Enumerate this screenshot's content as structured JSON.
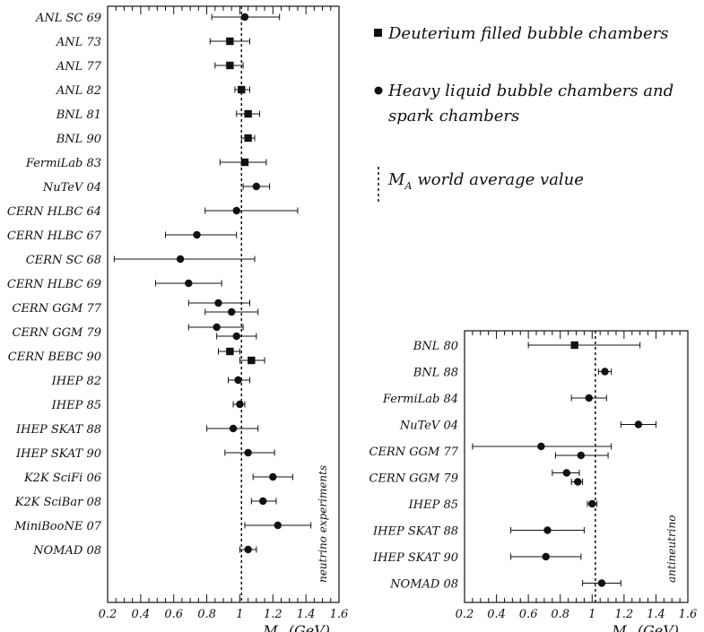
{
  "legend": {
    "deuterium": "Deuterium filled bubble chambers",
    "heavy_line1": "Heavy liquid bubble chambers and",
    "heavy_line2": "spark chambers",
    "average": "world average value",
    "average_symbol": "M",
    "average_sub": "A"
  },
  "chart_data": [
    {
      "type": "scatter",
      "xlabel": "M",
      "xlabel_sub": "A",
      "xlabel_unit": "(GeV)",
      "side_label": "neutrino experiments",
      "xlim": [
        0.2,
        1.6
      ],
      "xticks": [
        "0.2",
        "0.4",
        "0.6",
        "0.8",
        "1",
        "1.2",
        "1.4",
        "1.6"
      ],
      "world_average": 1.01,
      "experiments": [
        {
          "label": "ANL SC 69",
          "points": [
            {
              "value": 1.03,
              "low": 0.83,
              "high": 1.24,
              "marker": "circle"
            }
          ]
        },
        {
          "label": "ANL 73",
          "points": [
            {
              "value": 0.94,
              "low": 0.82,
              "high": 1.06,
              "marker": "square"
            }
          ]
        },
        {
          "label": "ANL 77",
          "points": [
            {
              "value": 0.94,
              "low": 0.85,
              "high": 1.02,
              "marker": "square"
            }
          ]
        },
        {
          "label": "ANL 82",
          "points": [
            {
              "value": 1.01,
              "low": 0.97,
              "high": 1.06,
              "marker": "square"
            }
          ]
        },
        {
          "label": "BNL 81",
          "points": [
            {
              "value": 1.05,
              "low": 0.98,
              "high": 1.12,
              "marker": "square"
            }
          ]
        },
        {
          "label": "BNL 90",
          "points": [
            {
              "value": 1.05,
              "low": 1.01,
              "high": 1.09,
              "marker": "square"
            }
          ]
        },
        {
          "label": "FermiLab 83",
          "points": [
            {
              "value": 1.03,
              "low": 0.88,
              "high": 1.16,
              "marker": "square"
            }
          ]
        },
        {
          "label": "NuTeV 04",
          "points": [
            {
              "value": 1.1,
              "low": 1.02,
              "high": 1.18,
              "marker": "circle"
            }
          ]
        },
        {
          "label": "CERN HLBC 64",
          "points": [
            {
              "value": 0.98,
              "low": 0.79,
              "high": 1.35,
              "marker": "circle"
            }
          ]
        },
        {
          "label": "CERN HLBC 67",
          "points": [
            {
              "value": 0.74,
              "low": 0.55,
              "high": 0.98,
              "marker": "circle"
            }
          ]
        },
        {
          "label": "CERN SC 68",
          "points": [
            {
              "value": 0.64,
              "low": 0.24,
              "high": 1.09,
              "marker": "circle"
            }
          ]
        },
        {
          "label": "CERN HLBC 69",
          "points": [
            {
              "value": 0.69,
              "low": 0.49,
              "high": 0.89,
              "marker": "circle"
            }
          ]
        },
        {
          "label": "CERN GGM 77",
          "points": [
            {
              "value": 0.87,
              "low": 0.69,
              "high": 1.06,
              "marker": "circle"
            },
            {
              "value": 0.95,
              "low": 0.79,
              "high": 1.11,
              "marker": "circle",
              "offset": 1
            }
          ]
        },
        {
          "label": "CERN GGM 79",
          "points": [
            {
              "value": 0.86,
              "low": 0.69,
              "high": 1.02,
              "marker": "circle"
            },
            {
              "value": 0.98,
              "low": 0.86,
              "high": 1.1,
              "marker": "circle",
              "offset": -1
            }
          ]
        },
        {
          "label": "CERN BEBC 90",
          "points": [
            {
              "value": 0.94,
              "low": 0.87,
              "high": 1.0,
              "marker": "square"
            },
            {
              "value": 1.07,
              "low": 1.0,
              "high": 1.15,
              "marker": "square",
              "offset": 1
            }
          ]
        },
        {
          "label": "IHEP 82",
          "points": [
            {
              "value": 0.99,
              "low": 0.93,
              "high": 1.06,
              "marker": "circle"
            }
          ]
        },
        {
          "label": "IHEP 85",
          "points": [
            {
              "value": 1.0,
              "low": 0.96,
              "high": 1.03,
              "marker": "circle"
            }
          ]
        },
        {
          "label": "IHEP SKAT 88",
          "points": [
            {
              "value": 0.96,
              "low": 0.8,
              "high": 1.11,
              "marker": "circle"
            }
          ]
        },
        {
          "label": "IHEP SKAT 90",
          "points": [
            {
              "value": 1.05,
              "low": 0.91,
              "high": 1.21,
              "marker": "circle"
            }
          ]
        },
        {
          "label": "K2K SciFi 06",
          "points": [
            {
              "value": 1.2,
              "low": 1.08,
              "high": 1.32,
              "marker": "circle"
            }
          ]
        },
        {
          "label": "K2K SciBar 08",
          "points": [
            {
              "value": 1.14,
              "low": 1.07,
              "high": 1.22,
              "marker": "circle"
            }
          ]
        },
        {
          "label": "MiniBooNE 07",
          "points": [
            {
              "value": 1.23,
              "low": 1.03,
              "high": 1.43,
              "marker": "circle"
            }
          ]
        },
        {
          "label": "NOMAD 08",
          "points": [
            {
              "value": 1.05,
              "low": 1.0,
              "high": 1.1,
              "marker": "circle"
            }
          ]
        }
      ]
    },
    {
      "type": "scatter",
      "xlabel": "M",
      "xlabel_sub": "A",
      "xlabel_unit": "(GeV)",
      "side_label": "antineutrino",
      "xlim": [
        0.2,
        1.6
      ],
      "xticks": [
        "0.2",
        "0.4",
        "0.6",
        "0.8",
        "1",
        "1.2",
        "1.4",
        "1.6"
      ],
      "world_average": 1.02,
      "experiments": [
        {
          "label": "BNL 80",
          "points": [
            {
              "value": 0.89,
              "low": 0.6,
              "high": 1.3,
              "marker": "square"
            }
          ]
        },
        {
          "label": "BNL 88",
          "points": [
            {
              "value": 1.08,
              "low": 1.04,
              "high": 1.12,
              "marker": "circle"
            }
          ]
        },
        {
          "label": "FermiLab 84",
          "points": [
            {
              "value": 0.98,
              "low": 0.87,
              "high": 1.09,
              "marker": "circle"
            }
          ]
        },
        {
          "label": "NuTeV 04",
          "points": [
            {
              "value": 1.29,
              "low": 1.18,
              "high": 1.4,
              "marker": "circle"
            }
          ]
        },
        {
          "label": "CERN GGM 77",
          "points": [
            {
              "value": 0.68,
              "low": 0.25,
              "high": 1.12,
              "marker": "circle"
            },
            {
              "value": 0.93,
              "low": 0.77,
              "high": 1.1,
              "marker": "circle",
              "offset": 1
            }
          ]
        },
        {
          "label": "CERN GGM 79",
          "points": [
            {
              "value": 0.84,
              "low": 0.75,
              "high": 0.92,
              "marker": "circle"
            },
            {
              "value": 0.91,
              "low": 0.87,
              "high": 0.94,
              "marker": "circle",
              "offset": 1
            }
          ]
        },
        {
          "label": "IHEP 85",
          "points": [
            {
              "value": 1.0,
              "low": 0.97,
              "high": 1.03,
              "marker": "circle"
            }
          ]
        },
        {
          "label": "IHEP SKAT 88",
          "points": [
            {
              "value": 0.72,
              "low": 0.49,
              "high": 0.95,
              "marker": "circle"
            }
          ]
        },
        {
          "label": "IHEP SKAT 90",
          "points": [
            {
              "value": 0.71,
              "low": 0.49,
              "high": 0.93,
              "marker": "circle"
            }
          ]
        },
        {
          "label": "NOMAD 08",
          "points": [
            {
              "value": 1.06,
              "low": 0.94,
              "high": 1.18,
              "marker": "circle"
            }
          ]
        }
      ]
    }
  ]
}
